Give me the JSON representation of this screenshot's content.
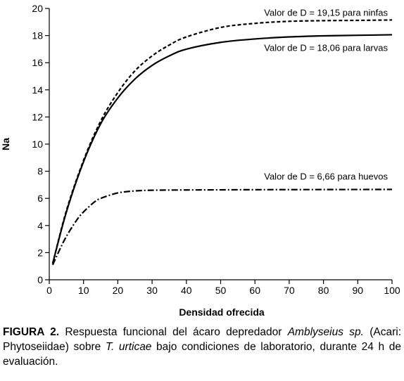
{
  "chart_data": {
    "type": "line",
    "xlabel": "Densidad ofrecida",
    "ylabel": "Na",
    "xlim": [
      0,
      100
    ],
    "ylim": [
      0,
      20
    ],
    "xticks": [
      0,
      10,
      20,
      30,
      40,
      50,
      60,
      70,
      80,
      90,
      100
    ],
    "yticks": [
      0,
      2,
      4,
      6,
      8,
      10,
      12,
      14,
      16,
      18,
      20
    ],
    "grid": false,
    "series": [
      {
        "style": "dashed",
        "annotation": "Valor de D = 19,15 para ninfas",
        "x": [
          1,
          5,
          10,
          15,
          20,
          25,
          30,
          35,
          40,
          50,
          60,
          70,
          80,
          90,
          100
        ],
        "y": [
          1.2,
          5.1,
          8.8,
          11.7,
          13.8,
          15.4,
          16.5,
          17.3,
          17.9,
          18.6,
          18.9,
          19.05,
          19.1,
          19.12,
          19.15
        ]
      },
      {
        "style": "solid",
        "annotation": "Valor de D = 18,06 para larvas",
        "x": [
          1,
          5,
          10,
          15,
          20,
          25,
          30,
          35,
          40,
          50,
          60,
          70,
          80,
          90,
          100
        ],
        "y": [
          1.2,
          5.0,
          8.7,
          11.5,
          13.4,
          14.8,
          15.8,
          16.5,
          17.0,
          17.5,
          17.75,
          17.9,
          17.98,
          18.02,
          18.06
        ]
      },
      {
        "style": "dash-dot",
        "annotation": "Valor de D = 6,66 para huevos",
        "x": [
          1,
          3,
          5,
          8,
          10,
          13,
          15,
          20,
          25,
          30,
          40,
          50,
          60,
          80,
          100
        ],
        "y": [
          1.1,
          2.2,
          3.2,
          4.4,
          5.0,
          5.7,
          6.0,
          6.4,
          6.55,
          6.6,
          6.62,
          6.63,
          6.64,
          6.65,
          6.66
        ]
      }
    ]
  },
  "caption": {
    "label": "FIGURA 2.",
    "t1": " Respuesta funcional del ácaro depredador ",
    "i1": "Amblyseius sp.",
    "t2": " (Acari: Phytoseiidae) sobre ",
    "i2": "T. urticae",
    "t3": " bajo condiciones de laboratorio, durante 24 h de evaluación."
  }
}
